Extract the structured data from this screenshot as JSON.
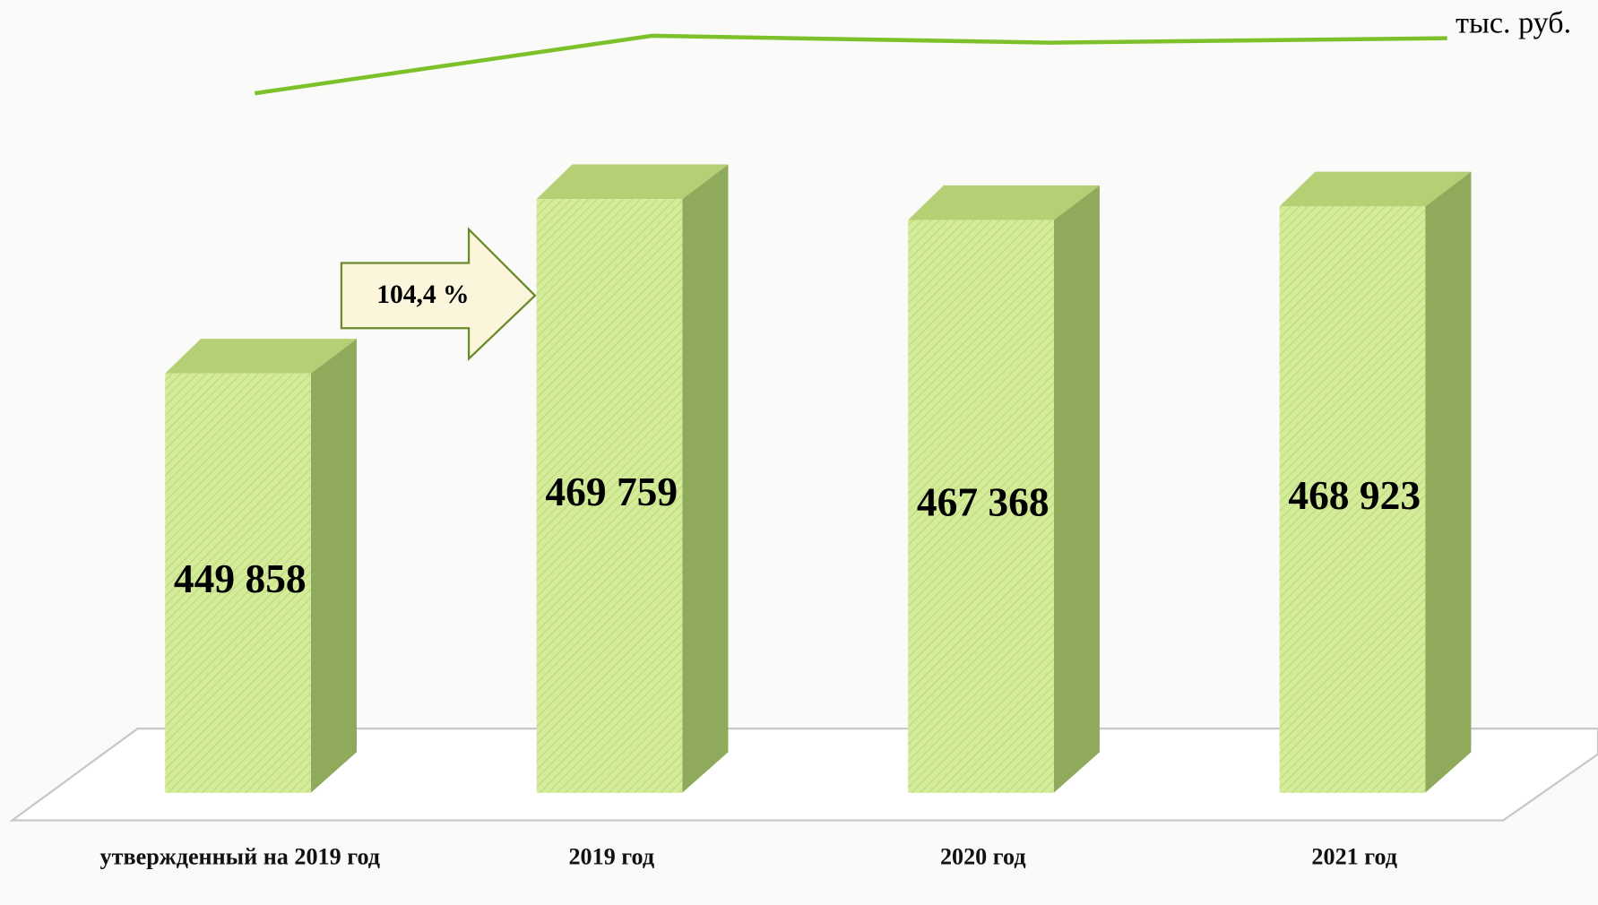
{
  "chart_data": {
    "type": "bar",
    "unit_label": "тыс. руб.",
    "categories": [
      "утвержденный на 2019 год",
      "2019 год",
      "2020 год",
      "2021 год"
    ],
    "values": [
      449858,
      469759,
      467368,
      468923
    ],
    "value_labels": [
      "449 858",
      "469 759",
      "467 368",
      "468 923"
    ],
    "ylim": [
      402000,
      472000
    ],
    "color": "#d4ec9a",
    "side_color": "#8faa5a",
    "top_color": "#b5cf75",
    "line_color": "#7dc12a",
    "annotation": "104,4 %"
  }
}
